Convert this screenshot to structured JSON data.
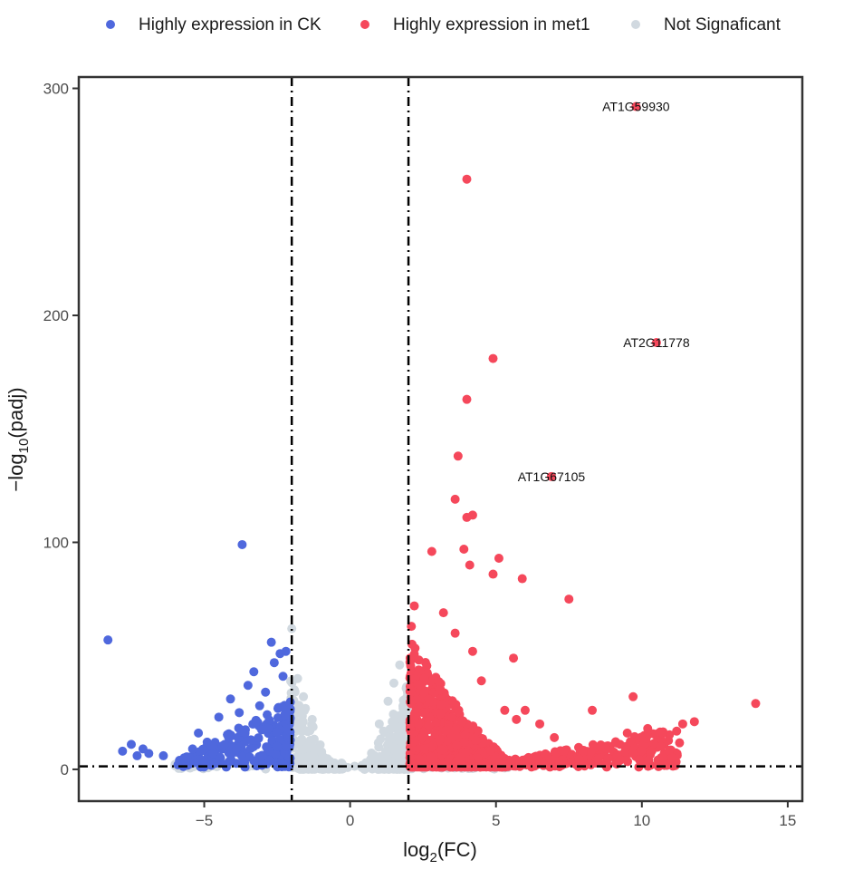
{
  "chart_data": {
    "type": "scatter",
    "title": "",
    "xlabel": "log2(FC)",
    "ylabel": "−log10(padj)",
    "xlabel_parts": {
      "base": "log",
      "sub": "2",
      "rest": "(FC)"
    },
    "ylabel_parts": {
      "pre": "−log",
      "sub": "10",
      "rest": "(padj)"
    },
    "xlim": [
      -9.3,
      15.5
    ],
    "ylim": [
      -14,
      305
    ],
    "x_ticks": [
      -5,
      0,
      5,
      10,
      15
    ],
    "x_tick_labels": [
      "−5",
      "0",
      "5",
      "10",
      "15"
    ],
    "y_ticks": [
      0,
      100,
      200,
      300
    ],
    "y_tick_labels": [
      "0",
      "100",
      "200",
      "300"
    ],
    "grid": false,
    "legend_position": "top",
    "thresholds": {
      "log2fc": [
        -2,
        2
      ],
      "neg_log10_padj": 1.3
    },
    "series": [
      {
        "name": "Highly expression in CK",
        "color": "#4F68DD",
        "points": [
          {
            "x": -8.3,
            "y": 57
          },
          {
            "x": -3.7,
            "y": 99
          },
          {
            "x": -7.8,
            "y": 8
          },
          {
            "x": -7.5,
            "y": 11
          },
          {
            "x": -7.3,
            "y": 6
          },
          {
            "x": -7.1,
            "y": 9
          },
          {
            "x": -6.9,
            "y": 7
          },
          {
            "x": -6.4,
            "y": 6
          },
          {
            "x": -5.9,
            "y": 2
          },
          {
            "x": -5.6,
            "y": 5
          },
          {
            "x": -5.4,
            "y": 9
          },
          {
            "x": -5.2,
            "y": 16
          },
          {
            "x": -5.0,
            "y": 4
          },
          {
            "x": -4.9,
            "y": 12
          },
          {
            "x": -4.7,
            "y": 7
          },
          {
            "x": -4.5,
            "y": 23
          },
          {
            "x": -4.3,
            "y": 11
          },
          {
            "x": -4.1,
            "y": 31
          },
          {
            "x": -3.9,
            "y": 9
          },
          {
            "x": -3.8,
            "y": 25
          },
          {
            "x": -3.6,
            "y": 16
          },
          {
            "x": -3.5,
            "y": 37
          },
          {
            "x": -3.4,
            "y": 13
          },
          {
            "x": -3.3,
            "y": 43
          },
          {
            "x": -3.2,
            "y": 21
          },
          {
            "x": -3.1,
            "y": 28
          },
          {
            "x": -3.0,
            "y": 6
          },
          {
            "x": -2.9,
            "y": 34
          },
          {
            "x": -2.8,
            "y": 18
          },
          {
            "x": -2.7,
            "y": 56
          },
          {
            "x": -2.6,
            "y": 47
          },
          {
            "x": -2.5,
            "y": 10
          },
          {
            "x": -2.4,
            "y": 51
          },
          {
            "x": -2.3,
            "y": 41
          },
          {
            "x": -2.2,
            "y": 52
          },
          {
            "x": -2.15,
            "y": 24
          }
        ],
        "dense_region": {
          "x": [
            -6,
            -2
          ],
          "y": [
            1,
            28
          ]
        }
      },
      {
        "name": "Highly expression in met1",
        "color": "#F5485B",
        "points": [
          {
            "x": 9.8,
            "y": 292
          },
          {
            "x": 4.0,
            "y": 260
          },
          {
            "x": 10.5,
            "y": 188
          },
          {
            "x": 4.9,
            "y": 181
          },
          {
            "x": 4.0,
            "y": 163
          },
          {
            "x": 3.7,
            "y": 138
          },
          {
            "x": 6.9,
            "y": 129
          },
          {
            "x": 3.6,
            "y": 119
          },
          {
            "x": 4.2,
            "y": 112
          },
          {
            "x": 4.0,
            "y": 111
          },
          {
            "x": 2.8,
            "y": 96
          },
          {
            "x": 3.9,
            "y": 97
          },
          {
            "x": 5.1,
            "y": 93
          },
          {
            "x": 4.1,
            "y": 90
          },
          {
            "x": 4.9,
            "y": 86
          },
          {
            "x": 5.9,
            "y": 84
          },
          {
            "x": 7.5,
            "y": 75
          },
          {
            "x": 2.2,
            "y": 72
          },
          {
            "x": 3.2,
            "y": 69
          },
          {
            "x": 2.1,
            "y": 63
          },
          {
            "x": 3.6,
            "y": 60
          },
          {
            "x": 4.2,
            "y": 52
          },
          {
            "x": 5.6,
            "y": 49
          },
          {
            "x": 4.5,
            "y": 39
          },
          {
            "x": 9.7,
            "y": 32
          },
          {
            "x": 13.9,
            "y": 29
          },
          {
            "x": 5.3,
            "y": 26
          },
          {
            "x": 8.3,
            "y": 26
          },
          {
            "x": 11.8,
            "y": 21
          },
          {
            "x": 11.4,
            "y": 20
          },
          {
            "x": 10.2,
            "y": 18
          },
          {
            "x": 9.5,
            "y": 16
          },
          {
            "x": 6.0,
            "y": 26
          },
          {
            "x": 5.7,
            "y": 22
          },
          {
            "x": 6.5,
            "y": 20
          },
          {
            "x": 7.0,
            "y": 14
          }
        ],
        "dense_region": {
          "x": [
            2,
            5.5
          ],
          "y": [
            1,
            60
          ]
        },
        "tail_region": {
          "x": [
            5.5,
            11.5
          ],
          "y": [
            1,
            19
          ]
        }
      },
      {
        "name": "Not Signaficant",
        "color": "#D1D9E0",
        "points": [
          {
            "x": -2.0,
            "y": 62
          },
          {
            "x": 1.7,
            "y": 46
          },
          {
            "x": 1.5,
            "y": 38
          },
          {
            "x": -1.8,
            "y": 40
          },
          {
            "x": -1.6,
            "y": 32
          },
          {
            "x": 1.3,
            "y": 30
          },
          {
            "x": -1.3,
            "y": 22
          },
          {
            "x": 1.0,
            "y": 20
          }
        ],
        "dense_region": {
          "x": [
            -6,
            5.5
          ],
          "y": [
            0,
            40
          ]
        }
      }
    ],
    "annotations": [
      {
        "text": "AT1G59930",
        "x": 9.8,
        "y": 292
      },
      {
        "text": "AT2G11778",
        "x": 10.5,
        "y": 188
      },
      {
        "text": "AT1G67105",
        "x": 6.9,
        "y": 129
      }
    ]
  }
}
